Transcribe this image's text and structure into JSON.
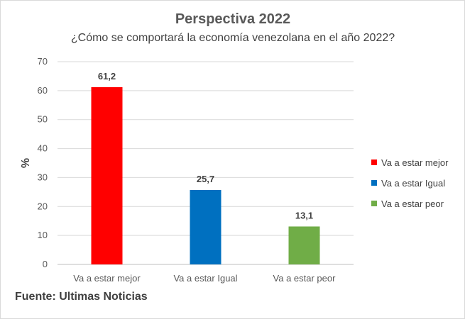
{
  "chart_data": {
    "type": "bar",
    "title": "Perspectiva 2022",
    "subtitle": "¿Cómo se comportará la economía venezolana en el año 2022?",
    "categories": [
      "Va a estar mejor",
      "Va a estar Igual",
      "Va a estar peor"
    ],
    "values": [
      61.2,
      25.7,
      13.1
    ],
    "value_labels": [
      "61,2",
      "25,7",
      "13,1"
    ],
    "colors": [
      "#ff0000",
      "#0070c0",
      "#70ad47"
    ],
    "xlabel": "",
    "ylabel": "%",
    "ylim": [
      0,
      70
    ],
    "yticks": [
      0,
      10,
      20,
      30,
      40,
      50,
      60,
      70
    ],
    "grid": true,
    "legend_position": "right",
    "legend": [
      "Va a estar mejor",
      "Va a estar Igual",
      "Va a estar peor"
    ]
  },
  "source_note": "Fuente: Ultimas Noticias"
}
